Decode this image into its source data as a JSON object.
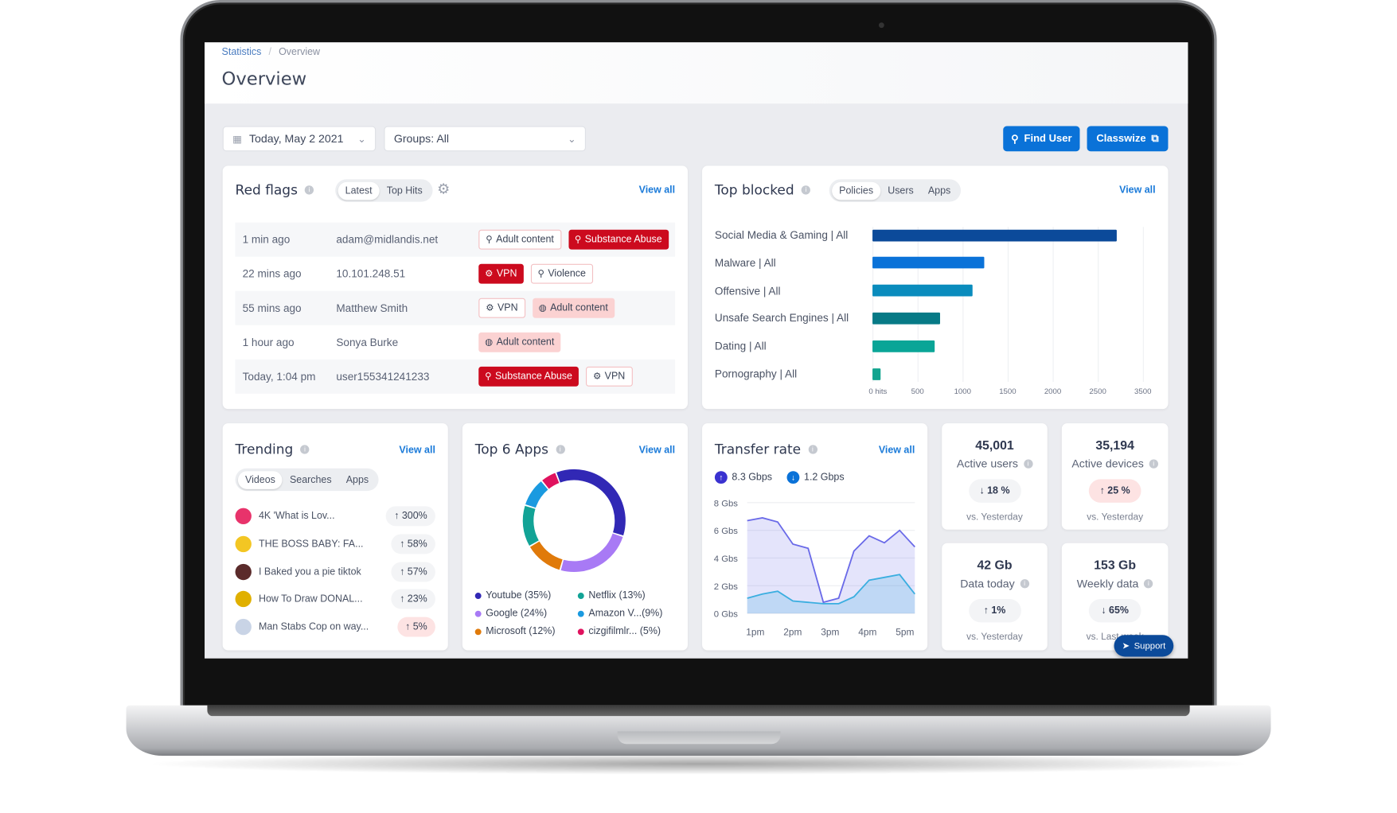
{
  "breadcrumb": {
    "parent": "Statistics",
    "separator": "/",
    "current": "Overview"
  },
  "page_title": "Overview",
  "filters": {
    "date": "Today, May 2 2021",
    "groups": "Groups: All"
  },
  "actions": {
    "find_user": "Find User",
    "classwize": "Classwize"
  },
  "colors": {
    "accent": "#0a72d8",
    "danger": "#cc0a1e",
    "support": "#0b4a9a"
  },
  "red_flags": {
    "title": "Red flags",
    "view_all": "View all",
    "tabs": [
      "Latest",
      "Top Hits"
    ],
    "active_tab": "Latest",
    "rows": [
      {
        "time": "1 min ago",
        "who": "adam@midlandis.net",
        "tags": [
          {
            "label": "Adult content",
            "style": "outline",
            "icon": "search-icon"
          },
          {
            "label": "Substance Abuse",
            "style": "solid",
            "icon": "search-icon"
          }
        ]
      },
      {
        "time": "22 mins ago",
        "who": "10.101.248.51",
        "tags": [
          {
            "label": "VPN",
            "style": "solid",
            "icon": "gear-icon"
          },
          {
            "label": "Violence",
            "style": "outline",
            "icon": "search-icon"
          }
        ]
      },
      {
        "time": "55 mins ago",
        "who": "Matthew Smith",
        "tags": [
          {
            "label": "VPN",
            "style": "outline",
            "icon": "gear-icon"
          },
          {
            "label": "Adult content",
            "style": "soft",
            "icon": "globe-icon"
          }
        ]
      },
      {
        "time": "1 hour ago",
        "who": "Sonya Burke",
        "tags": [
          {
            "label": "Adult content",
            "style": "soft",
            "icon": "globe-icon"
          }
        ]
      },
      {
        "time": "Today, 1:04 pm",
        "who": "user155341241233",
        "tags": [
          {
            "label": "Substance Abuse",
            "style": "solid",
            "icon": "search-icon"
          },
          {
            "label": "VPN",
            "style": "outline",
            "icon": "gear-icon"
          }
        ]
      }
    ]
  },
  "top_blocked": {
    "title": "Top blocked",
    "view_all": "View all",
    "tabs": [
      "Policies",
      "Users",
      "Apps"
    ],
    "active_tab": "Policies",
    "chart_data": {
      "type": "bar",
      "orientation": "horizontal",
      "categories": [
        "Social Media & Gaming | All",
        "Malware | All",
        "Offensive | All",
        "Unsafe Search Engines | All",
        "Dating | All",
        "Pornography | All"
      ],
      "values": [
        2710,
        1240,
        1110,
        750,
        690,
        90
      ],
      "colors": [
        "#0b4a9a",
        "#0a72d8",
        "#0a8cbd",
        "#077a86",
        "#0aa597",
        "#12a48f"
      ],
      "tick_labels": [
        "0 hits",
        "500",
        "1000",
        "1500",
        "2000",
        "2500",
        "3500"
      ],
      "xlim": [
        0,
        3000
      ],
      "grid": true
    }
  },
  "trending": {
    "title": "Trending",
    "view_all": "View all",
    "tabs": [
      "Videos",
      "Searches",
      "Apps"
    ],
    "active_tab": "Videos",
    "items": [
      {
        "title": "4K 'What is Lov...",
        "change": "↑ 300%",
        "hot": false,
        "icon_color": "#e8336b"
      },
      {
        "title": "THE BOSS BABY: FA...",
        "change": "↑ 58%",
        "hot": false,
        "icon_color": "#f3c623"
      },
      {
        "title": "I Baked you a pie tiktok",
        "change": "↑ 57%",
        "hot": false,
        "icon_color": "#5b2b2b"
      },
      {
        "title": "How To Draw DONAL...",
        "change": "↑ 23%",
        "hot": false,
        "icon_color": "#e0b000"
      },
      {
        "title": "Man Stabs Cop on way...",
        "change": "↑ 5%",
        "hot": true,
        "icon_color": "#c9d4e6"
      }
    ]
  },
  "top_apps": {
    "title": "Top 6 Apps",
    "view_all": "View all",
    "chart_data": {
      "type": "pie",
      "donut": true,
      "slices": [
        {
          "label": "Youtube (35%)",
          "value": 35,
          "color": "#3128b5"
        },
        {
          "label": "Google (24%)",
          "value": 24,
          "color": "#a87af5"
        },
        {
          "label": "Microsoft (12%)",
          "value": 12,
          "color": "#e07a0a"
        },
        {
          "label": "Netflix (13%)",
          "value": 13,
          "color": "#12a396"
        },
        {
          "label": "Amazon V...(9%)",
          "value": 9,
          "color": "#1a9ae0"
        },
        {
          "label": "cizgifilmlr... (5%)",
          "value": 5,
          "color": "#e0125e"
        }
      ]
    }
  },
  "transfer_rate": {
    "title": "Transfer rate",
    "view_all": "View all",
    "upload": "8.3 Gbps",
    "download": "1.2 Gbps",
    "chart_data": {
      "type": "area",
      "x_tick_labels": [
        "1pm",
        "2pm",
        "3pm",
        "4pm",
        "5pm"
      ],
      "y_tick_labels": [
        "8 Gbs",
        "6 Gbs",
        "4 Gbs",
        "2 Gbs",
        "0 Gbs"
      ],
      "ylim": [
        0,
        8
      ],
      "series": [
        {
          "values": [
            6.7,
            6.9,
            6.6,
            5.0,
            4.7,
            0.8,
            1.1,
            4.5,
            5.6,
            5.1,
            6.0,
            4.8
          ],
          "color": "#6a6ae8"
        },
        {
          "values": [
            1.1,
            1.4,
            1.6,
            0.9,
            0.8,
            0.7,
            0.7,
            1.2,
            2.4,
            2.6,
            2.8,
            1.4
          ],
          "color": "#3aaee0"
        }
      ]
    }
  },
  "stats": [
    {
      "value": "45,001",
      "label": "Active users",
      "change": "↓ 18 %",
      "up": false,
      "vs": "vs. Yesterday"
    },
    {
      "value": "35,194",
      "label": "Active devices",
      "change": "↑ 25 %",
      "up": true,
      "vs": "vs. Yesterday"
    },
    {
      "value": "42 Gb",
      "label": "Data today",
      "change": "↑ 1%",
      "up": false,
      "vs": "vs. Yesterday"
    },
    {
      "value": "153 Gb",
      "label": "Weekly data",
      "change": "↓ 65%",
      "up": false,
      "vs": "vs. Last week"
    }
  ],
  "support": "Support"
}
